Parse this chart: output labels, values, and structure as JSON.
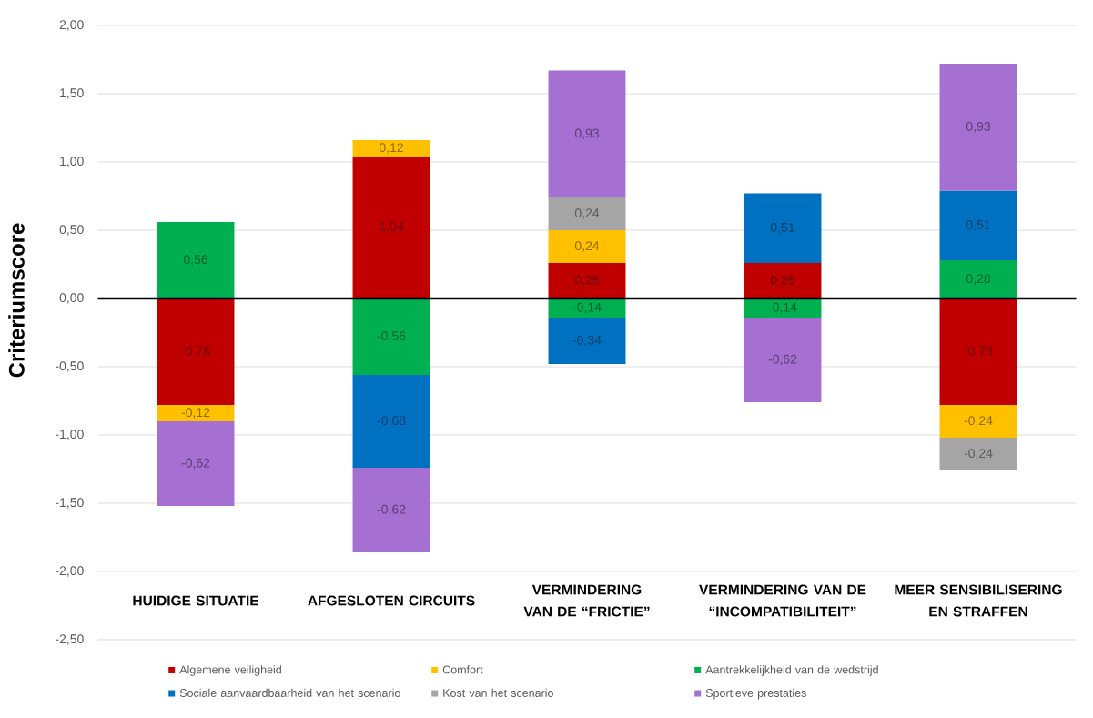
{
  "chart_data": {
    "type": "bar",
    "stacked": true,
    "ylabel": "Criteriumscore",
    "categories": [
      "HUIDIGE SITUATIE",
      "AFGESLOTEN CIRCUITS",
      "VERMINDERING VAN DE “FRICTIE”",
      "VERMINDERING VAN DE “INCOMPATIBILITEIT”",
      "MEER SENSIBILISERING EN STRAFFEN"
    ],
    "series": [
      {
        "name": "Algemene veiligheid",
        "color": "#c00000",
        "values": [
          -0.78,
          1.04,
          0.26,
          0.26,
          -0.78
        ],
        "value_labels": [
          "-0,78",
          "1,04",
          "0,26",
          "0,26",
          "-0,78"
        ]
      },
      {
        "name": "Comfort",
        "color": "#ffc000",
        "values": [
          -0.12,
          0.12,
          0.24,
          null,
          -0.24
        ],
        "value_labels": [
          "-0,12",
          "0,12",
          "0,24",
          null,
          "-0,24"
        ]
      },
      {
        "name": "Aantrekkelijkheid van de wedstrijd",
        "color": "#00b050",
        "values": [
          0.56,
          -0.56,
          -0.14,
          -0.14,
          0.28
        ],
        "value_labels": [
          "0,56",
          "-0,56",
          "-0,14",
          "-0,14",
          "0,28"
        ]
      },
      {
        "name": "Sociale aanvaardbaarheid van het scenario",
        "color": "#0070c0",
        "values": [
          null,
          -0.68,
          -0.34,
          0.51,
          0.51
        ],
        "value_labels": [
          null,
          "-0,68",
          "-0,34",
          "0,51",
          "0,51"
        ]
      },
      {
        "name": "Kost van het scenario",
        "color": "#a5a5a5",
        "values": [
          null,
          null,
          0.24,
          null,
          -0.24
        ],
        "value_labels": [
          null,
          null,
          "0,24",
          null,
          "-0,24"
        ]
      },
      {
        "name": "Sportieve prestaties",
        "color": "#a66fd2",
        "values": [
          -0.62,
          -0.62,
          0.93,
          -0.62,
          0.93
        ],
        "value_labels": [
          "-0,62",
          "-0,62",
          "0,93",
          "-0,62",
          "0,93"
        ]
      }
    ],
    "ylim": [
      -2.5,
      2
    ],
    "yticks": [
      {
        "value": 2,
        "label": "2,00"
      },
      {
        "value": 1.5,
        "label": "1,50"
      },
      {
        "value": 1,
        "label": "1,00"
      },
      {
        "value": 0.5,
        "label": "0,50"
      },
      {
        "value": 0,
        "label": "0,00"
      },
      {
        "value": -0.5,
        "label": "-0,50"
      },
      {
        "value": -1,
        "label": "-1,00"
      },
      {
        "value": -1.5,
        "label": "-1,50"
      },
      {
        "value": -2,
        "label": "-2,00"
      },
      {
        "value": -2.5,
        "label": "-2,50"
      }
    ],
    "grid": "y",
    "legend": "bottom",
    "ref_lines": [
      {
        "axis": "y",
        "value": 0,
        "color": "#000000"
      }
    ]
  }
}
